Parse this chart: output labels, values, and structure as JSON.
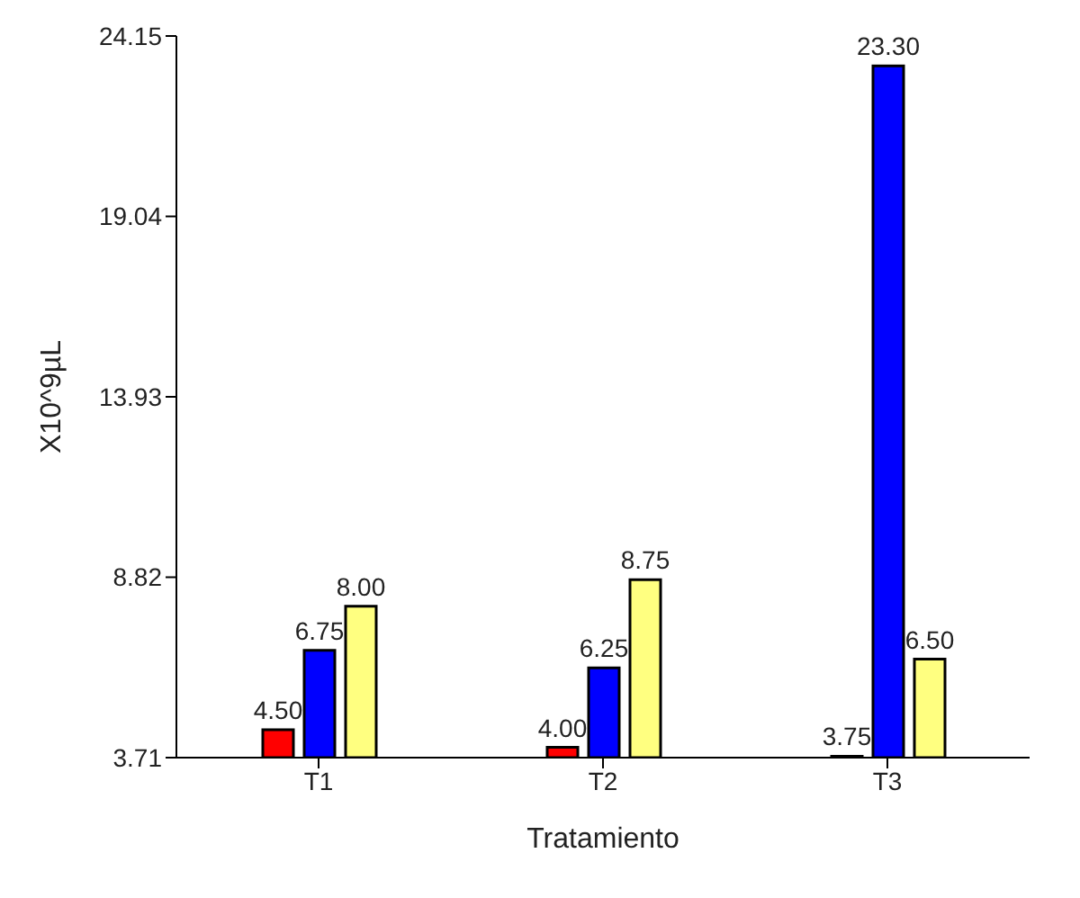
{
  "chart_data": {
    "type": "bar",
    "xlabel": "Tratamiento",
    "ylabel": "X10^9µL",
    "categories": [
      "T1",
      "T2",
      "T3"
    ],
    "series": [
      {
        "color": "#ff0000",
        "values": [
          4.5,
          4.0,
          3.75
        ],
        "value_labels": [
          "4.50",
          "4.00",
          "3.75"
        ]
      },
      {
        "color": "#0000ff",
        "values": [
          6.75,
          6.25,
          23.3
        ],
        "value_labels": [
          "6.75",
          "6.25",
          "23.30"
        ]
      },
      {
        "color": "#ffff80",
        "values": [
          8.0,
          8.75,
          6.5
        ],
        "value_labels": [
          "8.00",
          "8.75",
          "6.50"
        ]
      }
    ],
    "ylim": [
      3.71,
      24.15
    ],
    "yticks": [
      3.71,
      8.82,
      13.93,
      19.04,
      24.15
    ],
    "grid": false,
    "legend": false
  }
}
